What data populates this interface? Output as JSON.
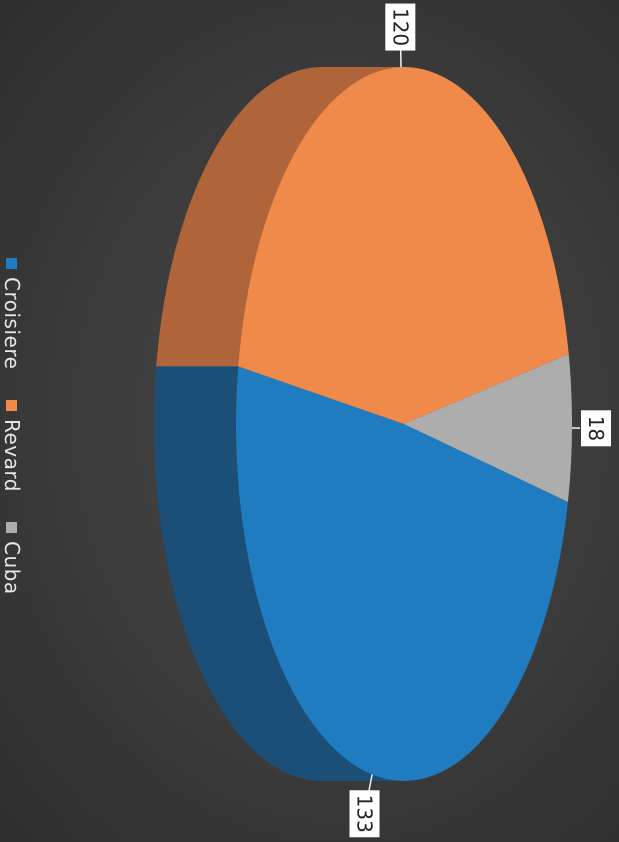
{
  "chart_data": {
    "type": "pie",
    "style": "3d",
    "orientation": "rotated 90 degrees clockwise",
    "categories": [
      "Croisiere",
      "Revard",
      "Cuba"
    ],
    "values": [
      133,
      120,
      18
    ],
    "data_labels": [
      "133",
      "120",
      "18"
    ],
    "colors": [
      "#1f7cc1",
      "#ef8a4a",
      "#adadad"
    ],
    "side_colors": [
      "#1b4f78",
      "#b0643a",
      "#777777"
    ],
    "legend": {
      "position": "left",
      "entries": [
        "Croisiere",
        "Revard",
        "Cuba"
      ]
    },
    "title": ""
  }
}
